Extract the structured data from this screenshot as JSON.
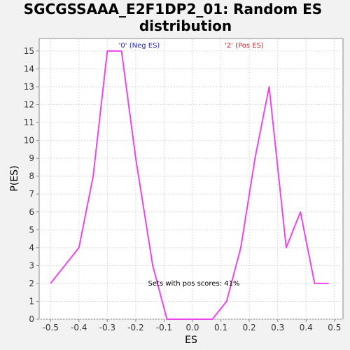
{
  "chart_data": {
    "type": "line",
    "title_lines": [
      "SGCGSSAAA_E2F1DP2_01: Random ES",
      "distribution"
    ],
    "xlabel": "ES",
    "ylabel": "P(ES)",
    "xlim": [
      -0.54,
      0.53
    ],
    "ylim": [
      0,
      15.7
    ],
    "x_ticks": [
      -0.5,
      -0.4,
      -0.3,
      -0.2,
      -0.1,
      0.0,
      0.1,
      0.2,
      0.3,
      0.4,
      0.5
    ],
    "x_tick_labels": [
      "-0.5",
      "-0.4",
      "-0.3",
      "-0.2",
      "-0.1",
      "0.0",
      "0.1",
      "0.2",
      "0.3",
      "0.4",
      "0.5"
    ],
    "y_ticks": [
      0,
      1,
      2,
      3,
      4,
      5,
      6,
      7,
      8,
      9,
      10,
      11,
      12,
      13,
      14,
      15
    ],
    "y_tick_labels": [
      "0",
      "1",
      "2",
      "3",
      "4",
      "5",
      "6",
      "7",
      "8",
      "9",
      "10",
      "11",
      "12",
      "13",
      "14",
      "15"
    ],
    "grid": true,
    "line_color": "#ee44ee",
    "series": [
      {
        "x": [
          -0.5,
          -0.4,
          -0.35,
          -0.3,
          -0.25,
          -0.2,
          -0.14,
          -0.09,
          0.07,
          0.12,
          0.17,
          0.22,
          0.27,
          0.33,
          0.38,
          0.43,
          0.48
        ],
        "y": [
          2,
          4,
          8,
          15,
          15,
          9,
          3,
          0,
          0,
          1,
          4,
          9,
          13,
          4,
          6,
          2,
          2
        ]
      }
    ],
    "annotations": {
      "neg_label": "'0' (Neg ES)",
      "neg_color": "#2222cc",
      "pos_label": "'2' (Pos ES)",
      "pos_color": "#cc2222",
      "sets_text": "Sets with pos scores: 41%"
    }
  }
}
